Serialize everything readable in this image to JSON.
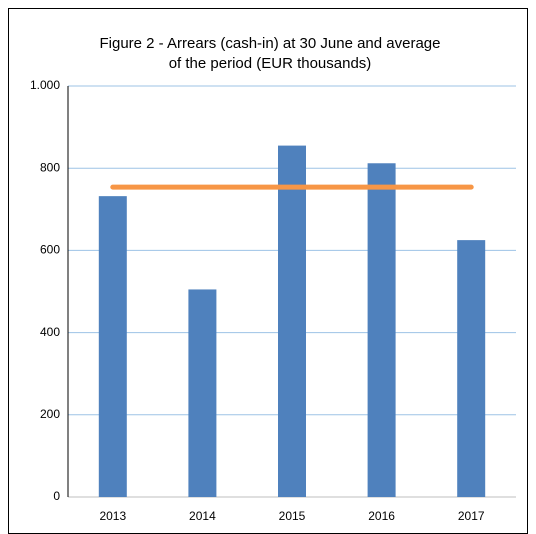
{
  "chart_data": {
    "type": "bar",
    "title": [
      "Figure 2 - Arrears (cash-in) at 30 June and average",
      "of the period (EUR thousands)"
    ],
    "categories": [
      "2013",
      "2014",
      "2015",
      "2016",
      "2017"
    ],
    "series": [
      {
        "type": "bar",
        "color": "#4f81bd",
        "values": [
          732,
          505,
          855,
          812,
          625
        ]
      },
      {
        "type": "line",
        "color": "#f79646",
        "values": [
          754,
          754,
          754,
          754,
          754
        ]
      }
    ],
    "ylim": [
      0,
      1000
    ],
    "yticks": [
      0,
      200,
      400,
      600,
      800,
      {
        "value": 1000,
        "label": "1.000"
      }
    ],
    "grid": true
  }
}
